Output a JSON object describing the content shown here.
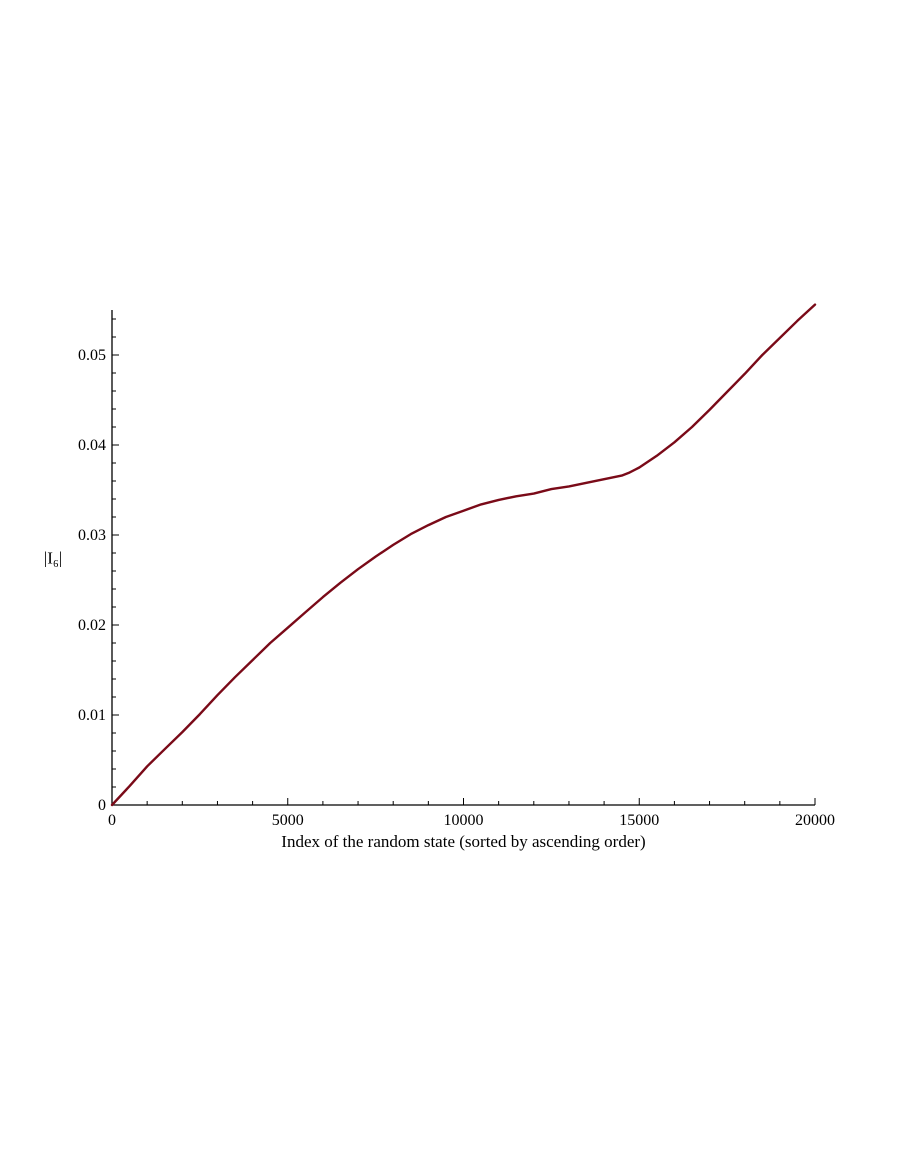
{
  "chart_data": {
    "type": "line",
    "title": "",
    "xlabel": "Index of the random state (sorted by ascending order)",
    "ylabel": "|I₆|",
    "xlim": [
      0,
      20000
    ],
    "ylim": [
      0,
      0.055
    ],
    "x_ticks": [
      0,
      5000,
      10000,
      15000,
      20000
    ],
    "x_tick_labels": [
      "0",
      "5000",
      "10000",
      "15000",
      "20000"
    ],
    "y_ticks": [
      0,
      0.01,
      0.02,
      0.03,
      0.04,
      0.05
    ],
    "y_tick_labels": [
      "0",
      "0.01",
      "0.02",
      "0.03",
      "0.04",
      "0.05"
    ],
    "grid": false,
    "legend": "none",
    "series": [
      {
        "color": "#7a0a18",
        "x": [
          0,
          500,
          1000,
          1500,
          2000,
          2500,
          3000,
          3500,
          4000,
          4500,
          5000,
          5500,
          6000,
          6500,
          7000,
          7500,
          8000,
          8500,
          9000,
          9500,
          10000,
          10500,
          11000,
          11500,
          12000,
          12500,
          13000,
          13500,
          14000,
          14500,
          14700,
          15000,
          15500,
          16000,
          16500,
          17000,
          17500,
          18000,
          18500,
          19000,
          19500,
          20000
        ],
        "y": [
          0,
          0.0021,
          0.0043,
          0.0062,
          0.0081,
          0.0101,
          0.0122,
          0.0142,
          0.0161,
          0.018,
          0.0197,
          0.0214,
          0.0231,
          0.0247,
          0.0262,
          0.0276,
          0.0289,
          0.0301,
          0.0311,
          0.032,
          0.0327,
          0.0334,
          0.0339,
          0.0343,
          0.0346,
          0.0351,
          0.0354,
          0.0358,
          0.0362,
          0.0366,
          0.0369,
          0.0375,
          0.0388,
          0.0403,
          0.042,
          0.0439,
          0.0459,
          0.0479,
          0.05,
          0.0519,
          0.0538,
          0.0556
        ]
      }
    ]
  }
}
